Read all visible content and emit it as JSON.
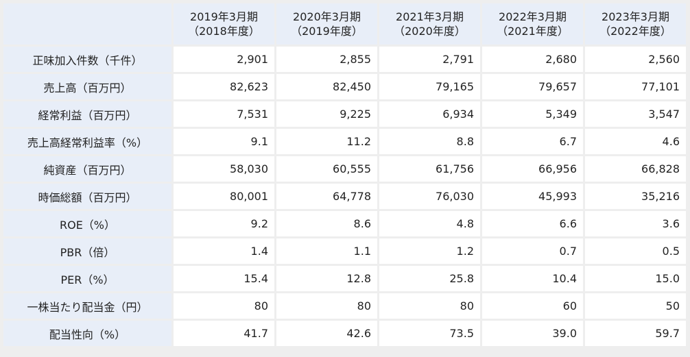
{
  "table": {
    "columns": [
      {
        "line1": "2019年3月期",
        "line2": "（2018年度）"
      },
      {
        "line1": "2020年3月期",
        "line2": "（2019年度）"
      },
      {
        "line1": "2021年3月期",
        "line2": "（2020年度）"
      },
      {
        "line1": "2022年3月期",
        "line2": "（2021年度）"
      },
      {
        "line1": "2023年3月期",
        "line2": "（2022年度）"
      }
    ],
    "rows": [
      {
        "label": "正味加入件数（千件）",
        "values": [
          "2,901",
          "2,855",
          "2,791",
          "2,680",
          "2,560"
        ]
      },
      {
        "label": "売上高（百万円）",
        "values": [
          "82,623",
          "82,450",
          "79,165",
          "79,657",
          "77,101"
        ]
      },
      {
        "label": "経常利益（百万円）",
        "values": [
          "7,531",
          "9,225",
          "6,934",
          "5,349",
          "3,547"
        ]
      },
      {
        "label": "売上高経常利益率（%）",
        "values": [
          "9.1",
          "11.2",
          "8.8",
          "6.7",
          "4.6"
        ]
      },
      {
        "label": "純資産（百万円）",
        "values": [
          "58,030",
          "60,555",
          "61,756",
          "66,956",
          "66,828"
        ]
      },
      {
        "label": "時価総額（百万円）",
        "values": [
          "80,001",
          "64,778",
          "76,030",
          "45,993",
          "35,216"
        ]
      },
      {
        "label": "ROE（%）",
        "values": [
          "9.2",
          "8.6",
          "4.8",
          "6.6",
          "3.6"
        ]
      },
      {
        "label": "PBR（倍）",
        "values": [
          "1.4",
          "1.1",
          "1.2",
          "0.7",
          "0.5"
        ]
      },
      {
        "label": "PER（%）",
        "values": [
          "15.4",
          "12.8",
          "25.8",
          "10.4",
          "15.0"
        ]
      },
      {
        "label": "一株当たり配当金（円）",
        "values": [
          "80",
          "80",
          "80",
          "60",
          "50"
        ]
      },
      {
        "label": "配当性向（%）",
        "values": [
          "41.7",
          "42.6",
          "73.5",
          "39.0",
          "59.7"
        ]
      }
    ]
  }
}
